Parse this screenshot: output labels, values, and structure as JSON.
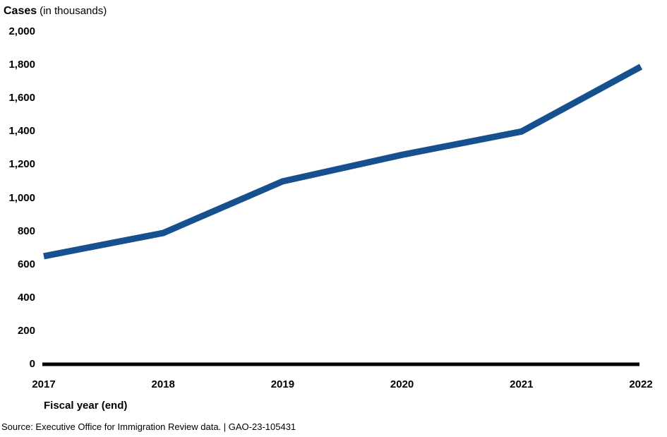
{
  "title": {
    "main": "Cases",
    "unit": "(in thousands)"
  },
  "footer": {
    "source_line": "Source: Executive Office for Immigration Review data.  |  GAO-23-105431"
  },
  "chart_data": {
    "type": "line",
    "title": "Cases (in thousands)",
    "xlabel": "Fiscal year (end)",
    "ylabel": "Cases (in thousands)",
    "categories": [
      "2017",
      "2018",
      "2019",
      "2020",
      "2021",
      "2022"
    ],
    "values": [
      650,
      790,
      1100,
      1260,
      1400,
      1790
    ],
    "ylim": [
      0,
      2000
    ],
    "yticks": [
      0,
      200,
      400,
      600,
      800,
      1000,
      1200,
      1400,
      1600,
      1800,
      2000
    ],
    "ytick_labels": [
      "0",
      "200",
      "400",
      "600",
      "800",
      "1,000",
      "1,200",
      "1,400",
      "1,600",
      "1,800",
      "2,000"
    ],
    "grid": false,
    "legend": "none",
    "line_color": "#17508f",
    "axis_color": "#000000"
  }
}
